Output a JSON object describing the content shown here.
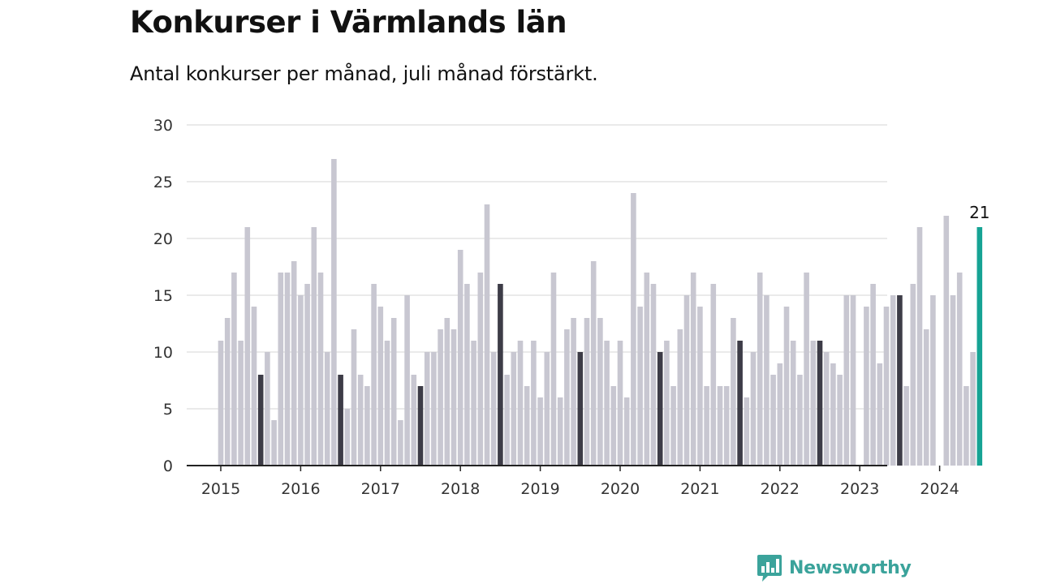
{
  "header": {
    "title": "Konkurser i Värmlands län",
    "subtitle": "Antal konkurser per månad, juli månad förstärkt."
  },
  "brand": {
    "name": "Newsworthy",
    "color": "#3ba39b",
    "icon": "bar-chart-speech-bubble-icon"
  },
  "colors": {
    "bar": "#c8c7d1",
    "highlight": "#3d3c47",
    "current": "#16a394",
    "grid": "#dddddd",
    "axis": "#222222",
    "text": "#111111",
    "tick_text": "#333333"
  },
  "chart_data": {
    "type": "bar",
    "title": "Konkurser i Värmlands län",
    "subtitle": "Antal konkurser per månad, juli månad förstärkt.",
    "xlabel": "",
    "ylabel": "",
    "ylim": [
      0,
      30
    ],
    "yticks": [
      0,
      5,
      10,
      15,
      20,
      25,
      30
    ],
    "xtick_labels": [
      "2015",
      "2016",
      "2017",
      "2018",
      "2019",
      "2020",
      "2021",
      "2022",
      "2023",
      "2024"
    ],
    "grid": true,
    "legend": "none",
    "start": "2015-01",
    "series": [
      {
        "year": "2015",
        "values": [
          11,
          13,
          17,
          11,
          21,
          14,
          8,
          10,
          4,
          17,
          17,
          18
        ]
      },
      {
        "year": "2016",
        "values": [
          15,
          16,
          21,
          17,
          10,
          27,
          8,
          5,
          12,
          8,
          7,
          16
        ]
      },
      {
        "year": "2017",
        "values": [
          14,
          11,
          13,
          4,
          15,
          8,
          7,
          10,
          10,
          12,
          13,
          12
        ]
      },
      {
        "year": "2018",
        "values": [
          19,
          16,
          11,
          17,
          23,
          10,
          16,
          8,
          10,
          11,
          7,
          11
        ]
      },
      {
        "year": "2019",
        "values": [
          6,
          10,
          17,
          6,
          12,
          13,
          10,
          13,
          18,
          13,
          11,
          7
        ]
      },
      {
        "year": "2020",
        "values": [
          11,
          6,
          24,
          14,
          17,
          16,
          10,
          11,
          7,
          12,
          15,
          17
        ]
      },
      {
        "year": "2021",
        "values": [
          14,
          7,
          16,
          7,
          7,
          13,
          11,
          6,
          10,
          17,
          15,
          8
        ]
      },
      {
        "year": "2022",
        "values": [
          9,
          14,
          11,
          8,
          17,
          11,
          11,
          10,
          9,
          8,
          15,
          15
        ]
      },
      {
        "year": "2023",
        "values": [
          0,
          14,
          16,
          9,
          14,
          15,
          15,
          7,
          16,
          21,
          12,
          15
        ]
      },
      {
        "year": "2024",
        "values": [
          0,
          22,
          15,
          17,
          7,
          10,
          21
        ]
      }
    ],
    "highlight_month": "juli",
    "annotations": [
      {
        "month": "2024-07",
        "text": "21"
      }
    ]
  }
}
